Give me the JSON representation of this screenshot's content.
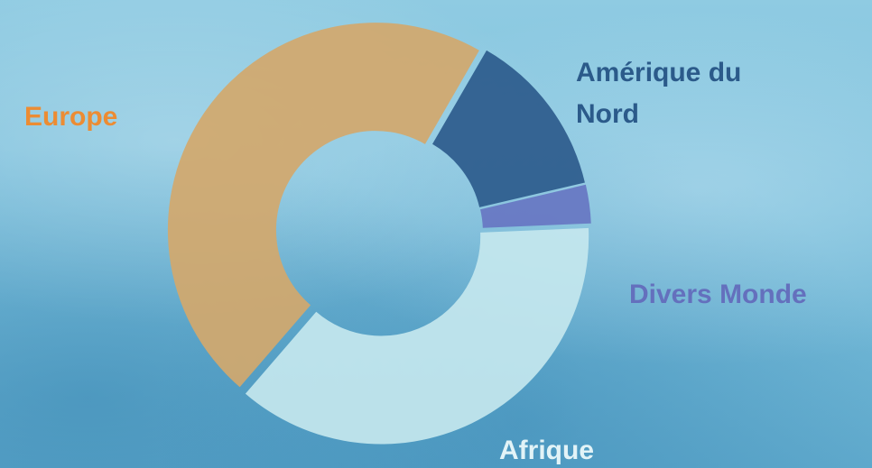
{
  "chart_data": {
    "type": "donut",
    "categories": [
      "Amérique du Nord",
      "Divers Monde",
      "Afrique",
      "Europe"
    ],
    "values": [
      13,
      3,
      37,
      47
    ],
    "colors": [
      "#2c5b8c",
      "#6776c2",
      "#c4e7ee",
      "#d2a86c"
    ],
    "label_colors": [
      "#2b5a8a",
      "#6470bd",
      "#e2f3f7",
      "#ec8c33"
    ]
  }
}
